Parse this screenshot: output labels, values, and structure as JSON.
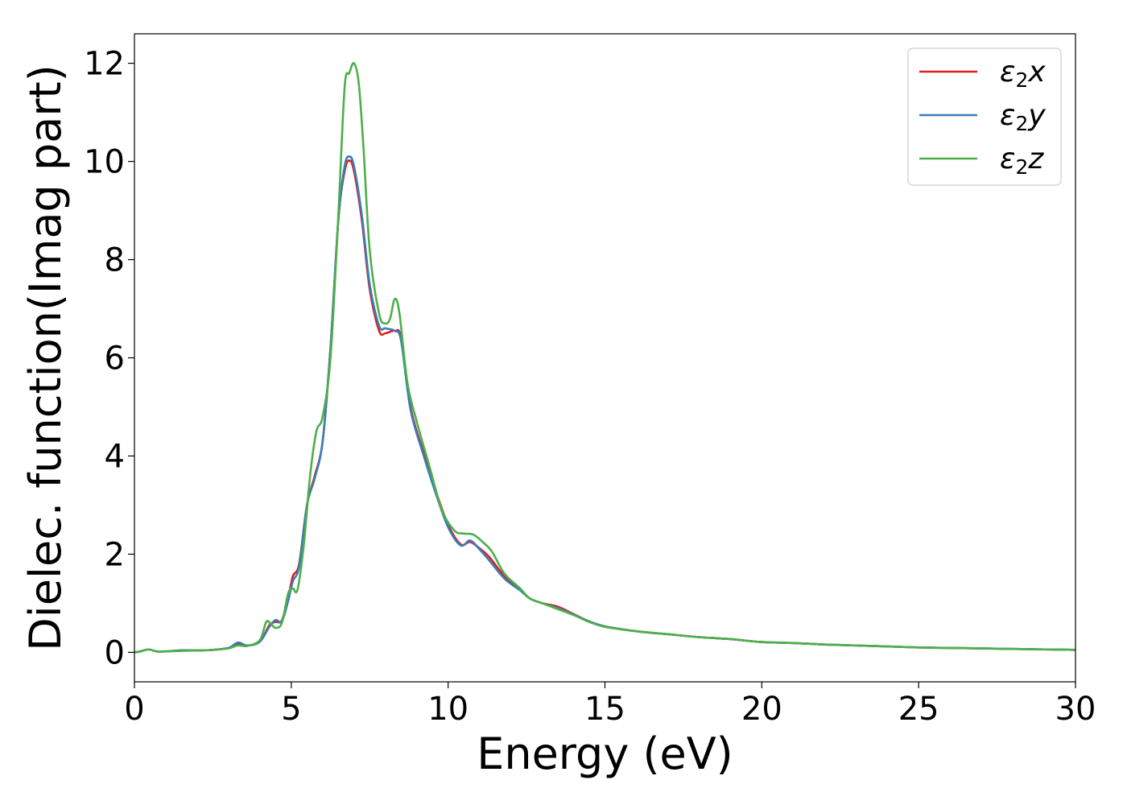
{
  "chart_data": {
    "type": "line",
    "title": "",
    "xlabel": "Energy (eV)",
    "ylabel": "Dielec. function(Imag part)",
    "xlim": [
      0,
      30
    ],
    "ylim": [
      -0.6,
      12.6
    ],
    "xticks": [
      0,
      5,
      10,
      15,
      20,
      25,
      30
    ],
    "yticks": [
      0,
      2,
      4,
      6,
      8,
      10,
      12
    ],
    "grid": false,
    "legend_position": "top-right",
    "series": [
      {
        "name": "ε₂x",
        "legend_base": "ε",
        "legend_sub": "2",
        "legend_suffix": "x",
        "color": "#e41a1c",
        "points": [
          [
            0,
            0
          ],
          [
            0.2,
            0.02
          ],
          [
            0.45,
            0.06
          ],
          [
            0.7,
            0.02
          ],
          [
            1.0,
            0.02
          ],
          [
            1.5,
            0.04
          ],
          [
            2.0,
            0.04
          ],
          [
            2.5,
            0.05
          ],
          [
            3.0,
            0.09
          ],
          [
            3.3,
            0.18
          ],
          [
            3.6,
            0.14
          ],
          [
            4.0,
            0.22
          ],
          [
            4.3,
            0.55
          ],
          [
            4.5,
            0.62
          ],
          [
            4.7,
            0.65
          ],
          [
            4.9,
            1.1
          ],
          [
            5.05,
            1.55
          ],
          [
            5.25,
            1.8
          ],
          [
            5.5,
            3.0
          ],
          [
            5.75,
            3.6
          ],
          [
            6.0,
            4.3
          ],
          [
            6.25,
            6.2
          ],
          [
            6.5,
            8.8
          ],
          [
            6.7,
            9.8
          ],
          [
            6.85,
            10.02
          ],
          [
            7.0,
            9.8
          ],
          [
            7.25,
            8.8
          ],
          [
            7.5,
            7.4
          ],
          [
            7.8,
            6.55
          ],
          [
            8.0,
            6.5
          ],
          [
            8.3,
            6.55
          ],
          [
            8.5,
            6.4
          ],
          [
            8.8,
            5.0
          ],
          [
            9.2,
            4.1
          ],
          [
            9.6,
            3.3
          ],
          [
            10.0,
            2.6
          ],
          [
            10.4,
            2.2
          ],
          [
            10.7,
            2.25
          ],
          [
            11.0,
            2.12
          ],
          [
            11.3,
            1.95
          ],
          [
            11.8,
            1.55
          ],
          [
            12.3,
            1.28
          ],
          [
            12.6,
            1.1
          ],
          [
            13.0,
            1.0
          ],
          [
            13.5,
            0.93
          ],
          [
            14.0,
            0.78
          ],
          [
            14.5,
            0.63
          ],
          [
            15.0,
            0.53
          ],
          [
            16.0,
            0.43
          ],
          [
            17.0,
            0.37
          ],
          [
            18.0,
            0.31
          ],
          [
            19.0,
            0.27
          ],
          [
            20.0,
            0.21
          ],
          [
            21.0,
            0.19
          ],
          [
            22.0,
            0.16
          ],
          [
            23.0,
            0.14
          ],
          [
            24.0,
            0.12
          ],
          [
            25.0,
            0.1
          ],
          [
            26.0,
            0.09
          ],
          [
            27.0,
            0.08
          ],
          [
            28.0,
            0.07
          ],
          [
            29.0,
            0.06
          ],
          [
            30.0,
            0.05
          ]
        ]
      },
      {
        "name": "ε₂y",
        "legend_base": "ε",
        "legend_sub": "2",
        "legend_suffix": "y",
        "color": "#377eb8",
        "points": [
          [
            0,
            0
          ],
          [
            0.2,
            0.02
          ],
          [
            0.45,
            0.06
          ],
          [
            0.7,
            0.02
          ],
          [
            1.0,
            0.02
          ],
          [
            1.5,
            0.04
          ],
          [
            2.0,
            0.04
          ],
          [
            2.5,
            0.05
          ],
          [
            3.0,
            0.09
          ],
          [
            3.3,
            0.2
          ],
          [
            3.6,
            0.14
          ],
          [
            4.0,
            0.22
          ],
          [
            4.3,
            0.52
          ],
          [
            4.5,
            0.66
          ],
          [
            4.7,
            0.63
          ],
          [
            4.9,
            1.05
          ],
          [
            5.05,
            1.45
          ],
          [
            5.25,
            1.75
          ],
          [
            5.5,
            3.0
          ],
          [
            5.75,
            3.55
          ],
          [
            6.0,
            4.3
          ],
          [
            6.25,
            6.2
          ],
          [
            6.5,
            8.8
          ],
          [
            6.7,
            9.9
          ],
          [
            6.85,
            10.1
          ],
          [
            7.0,
            9.9
          ],
          [
            7.25,
            8.9
          ],
          [
            7.5,
            7.5
          ],
          [
            7.8,
            6.65
          ],
          [
            8.0,
            6.6
          ],
          [
            8.3,
            6.55
          ],
          [
            8.5,
            6.35
          ],
          [
            8.8,
            4.95
          ],
          [
            9.2,
            4.05
          ],
          [
            9.6,
            3.25
          ],
          [
            10.0,
            2.55
          ],
          [
            10.4,
            2.18
          ],
          [
            10.7,
            2.28
          ],
          [
            11.0,
            2.1
          ],
          [
            11.3,
            1.88
          ],
          [
            11.8,
            1.5
          ],
          [
            12.3,
            1.26
          ],
          [
            12.6,
            1.1
          ],
          [
            13.0,
            1.0
          ],
          [
            13.5,
            0.9
          ],
          [
            14.0,
            0.77
          ],
          [
            14.5,
            0.63
          ],
          [
            15.0,
            0.53
          ],
          [
            16.0,
            0.43
          ],
          [
            17.0,
            0.37
          ],
          [
            18.0,
            0.31
          ],
          [
            19.0,
            0.27
          ],
          [
            20.0,
            0.21
          ],
          [
            21.0,
            0.19
          ],
          [
            22.0,
            0.16
          ],
          [
            23.0,
            0.14
          ],
          [
            24.0,
            0.12
          ],
          [
            25.0,
            0.1
          ],
          [
            26.0,
            0.09
          ],
          [
            27.0,
            0.08
          ],
          [
            28.0,
            0.07
          ],
          [
            29.0,
            0.06
          ],
          [
            30.0,
            0.05
          ]
        ]
      },
      {
        "name": "ε₂z",
        "legend_base": "ε",
        "legend_sub": "2",
        "legend_suffix": "z",
        "color": "#4daf4a",
        "points": [
          [
            0,
            0
          ],
          [
            0.2,
            0.02
          ],
          [
            0.45,
            0.06
          ],
          [
            0.7,
            0.02
          ],
          [
            1.0,
            0.02
          ],
          [
            1.5,
            0.03
          ],
          [
            2.0,
            0.04
          ],
          [
            2.5,
            0.05
          ],
          [
            3.0,
            0.08
          ],
          [
            3.3,
            0.14
          ],
          [
            3.6,
            0.13
          ],
          [
            4.0,
            0.25
          ],
          [
            4.2,
            0.62
          ],
          [
            4.35,
            0.58
          ],
          [
            4.5,
            0.5
          ],
          [
            4.7,
            0.6
          ],
          [
            4.9,
            1.2
          ],
          [
            5.05,
            1.3
          ],
          [
            5.2,
            1.28
          ],
          [
            5.4,
            2.2
          ],
          [
            5.6,
            3.6
          ],
          [
            5.8,
            4.5
          ],
          [
            6.0,
            4.8
          ],
          [
            6.25,
            6.0
          ],
          [
            6.5,
            8.9
          ],
          [
            6.7,
            11.5
          ],
          [
            6.85,
            11.8
          ],
          [
            7.0,
            12.0
          ],
          [
            7.15,
            11.6
          ],
          [
            7.3,
            10.3
          ],
          [
            7.5,
            8.2
          ],
          [
            7.8,
            6.9
          ],
          [
            8.0,
            6.7
          ],
          [
            8.15,
            6.8
          ],
          [
            8.3,
            7.2
          ],
          [
            8.45,
            6.9
          ],
          [
            8.7,
            5.5
          ],
          [
            9.0,
            4.7
          ],
          [
            9.4,
            3.8
          ],
          [
            9.8,
            2.9
          ],
          [
            10.2,
            2.48
          ],
          [
            10.5,
            2.42
          ],
          [
            10.8,
            2.4
          ],
          [
            11.1,
            2.25
          ],
          [
            11.4,
            2.05
          ],
          [
            11.8,
            1.6
          ],
          [
            12.3,
            1.3
          ],
          [
            12.6,
            1.1
          ],
          [
            13.0,
            1.0
          ],
          [
            13.5,
            0.88
          ],
          [
            14.0,
            0.76
          ],
          [
            14.5,
            0.62
          ],
          [
            15.0,
            0.52
          ],
          [
            16.0,
            0.43
          ],
          [
            17.0,
            0.37
          ],
          [
            18.0,
            0.31
          ],
          [
            19.0,
            0.27
          ],
          [
            20.0,
            0.21
          ],
          [
            21.0,
            0.19
          ],
          [
            22.0,
            0.16
          ],
          [
            23.0,
            0.14
          ],
          [
            24.0,
            0.12
          ],
          [
            25.0,
            0.1
          ],
          [
            26.0,
            0.09
          ],
          [
            27.0,
            0.08
          ],
          [
            28.0,
            0.07
          ],
          [
            29.0,
            0.06
          ],
          [
            30.0,
            0.05
          ]
        ]
      }
    ]
  }
}
